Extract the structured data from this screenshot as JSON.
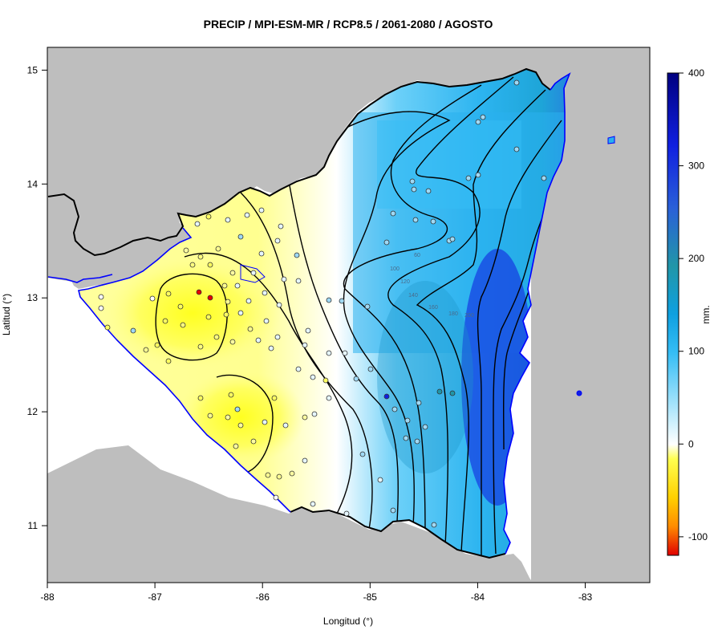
{
  "title": "PRECIP / MPI-ESM-MR / RCP8.5 / 2061-2080 / AGOSTO",
  "x_axis": {
    "label": "Longitud (°)",
    "range": [
      -88,
      -82.4
    ],
    "ticks": [
      -88,
      -87,
      -86,
      -85,
      -84,
      -83
    ],
    "tick_labels": [
      "-88",
      "-87",
      "-86",
      "-85",
      "-84",
      "-83"
    ]
  },
  "y_axis": {
    "label": "Latitud (°)",
    "range": [
      10.5,
      15.2
    ],
    "ticks": [
      11,
      12,
      13,
      14,
      15
    ],
    "tick_labels": [
      "11",
      "12",
      "13",
      "14",
      "15"
    ]
  },
  "colorbar": {
    "label": "mm.",
    "range": [
      -120,
      400
    ],
    "ticks": [
      -100,
      0,
      100,
      200,
      300,
      400
    ],
    "tick_labels": [
      "-100",
      "0",
      "100",
      "200",
      "300",
      "400"
    ],
    "colors": [
      "#e00000",
      "#ff8c00",
      "#ffff30",
      "#ffffff",
      "#4fc3f7",
      "#039be5",
      "#2196a0",
      "#1e40e0",
      "#000080"
    ]
  },
  "contour_labels": [
    "60",
    "100",
    "120",
    "140",
    "160",
    "180",
    "200"
  ],
  "colors": {
    "land_outside": "#bebebe",
    "sea": "#ffffff",
    "coast": "#0000ff",
    "border": "#000000",
    "contour": "#000000"
  }
}
